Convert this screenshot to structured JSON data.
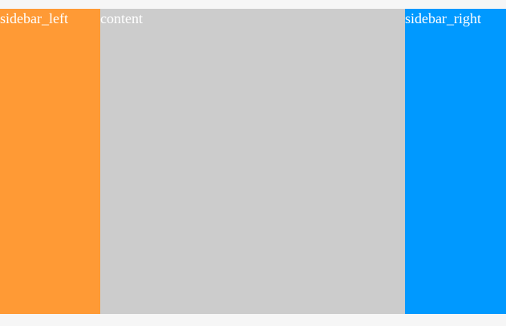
{
  "layout": {
    "sidebar_left": {
      "label": "sidebar_left"
    },
    "content": {
      "label": "content"
    },
    "sidebar_right": {
      "label": "sidebar_right"
    }
  },
  "colors": {
    "page_background": "#f6f6f6",
    "sidebar_left": "#ff9a35",
    "content": "#cccccc",
    "sidebar_right": "#0099ff",
    "text": "#ffffff"
  }
}
